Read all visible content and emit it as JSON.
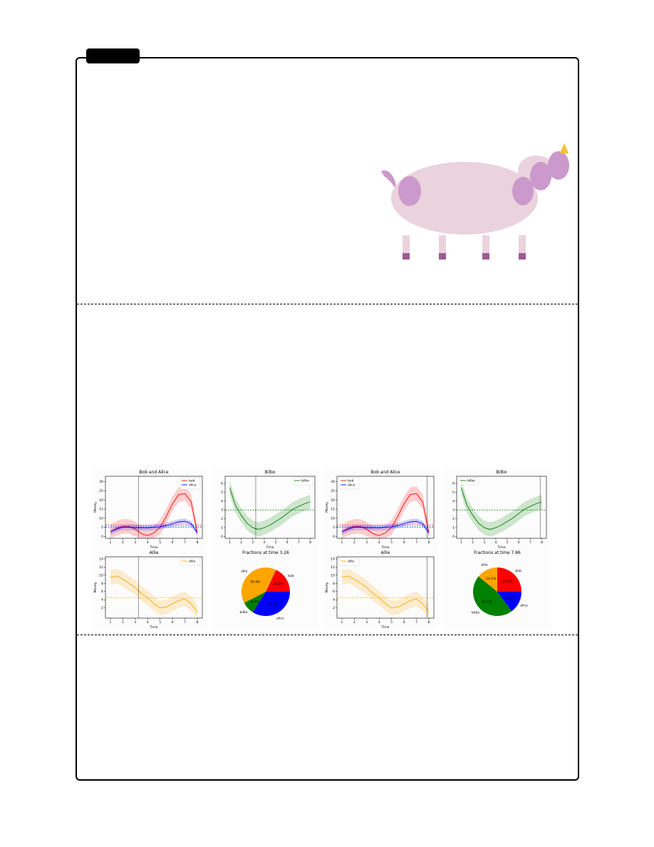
{
  "colors": {
    "bob": "#ff0000",
    "alice": "#0000ff",
    "bilbo": "#008000",
    "allie": "#ffa500",
    "cow_body": "#ead3dd",
    "cow_spots": "#cc99cc",
    "cow_hoof": "#9b5b94",
    "horn": "#f2c230"
  },
  "chart_data": [
    {
      "type": "line",
      "title": "Bob and Alice",
      "xlabel": "Time",
      "ylabel": "Money",
      "xlim": [
        0.6,
        8.4
      ],
      "ylim": [
        -1,
        33
      ],
      "xticks": [
        1,
        2,
        3,
        4,
        5,
        6,
        7,
        8
      ],
      "yticks": [
        0,
        5,
        10,
        15,
        20,
        25,
        30
      ],
      "legend": "top-right",
      "marker_time": 3.26,
      "x": [
        1,
        1.5,
        2,
        2.5,
        3,
        3.5,
        4,
        4.5,
        5,
        5.5,
        6,
        6.5,
        7,
        7.5,
        8
      ],
      "series": [
        {
          "name": "bob",
          "color": "#ff0000",
          "values": [
            2.5,
            4.5,
            5.5,
            5.5,
            4,
            1.5,
            0.5,
            2,
            5,
            11,
            18,
            23,
            23.5,
            19,
            2
          ],
          "band": 4,
          "hline": 6.3
        },
        {
          "name": "alice",
          "color": "#0000ff",
          "values": [
            2.5,
            4,
            5,
            5,
            4.8,
            4.8,
            4.8,
            5,
            5.3,
            6,
            7,
            8,
            8.3,
            7,
            2
          ],
          "band": 1.5,
          "hline": 5.2
        }
      ]
    },
    {
      "type": "line",
      "title": "Bilbo",
      "xlabel": "Time",
      "ylabel": "",
      "xlim": [
        0.6,
        8.4
      ],
      "ylim": [
        -0.2,
        6.8
      ],
      "xticks": [
        1,
        2,
        3,
        4,
        5,
        6,
        7,
        8
      ],
      "yticks": [
        0,
        1,
        2,
        3,
        4,
        5,
        6
      ],
      "legend": "top-right",
      "marker_time": 3.26,
      "x": [
        1,
        1.5,
        2,
        2.5,
        3,
        3.5,
        4,
        4.5,
        5,
        5.5,
        6,
        6.5,
        7,
        7.5,
        8
      ],
      "series": [
        {
          "name": "bilbo",
          "color": "#008000",
          "values": [
            5.5,
            3.5,
            2.4,
            1.5,
            1,
            0.8,
            1,
            1.3,
            1.7,
            2.1,
            2.6,
            3.1,
            3.4,
            3.7,
            3.9
          ],
          "band": 0.8,
          "hline": 3
        }
      ]
    },
    {
      "type": "line",
      "title": "Allie",
      "xlabel": "Time",
      "ylabel": "Money",
      "xlim": [
        0.6,
        8.4
      ],
      "ylim": [
        -0.5,
        14.5
      ],
      "xticks": [
        1,
        2,
        3,
        4,
        5,
        6,
        7,
        8
      ],
      "yticks": [
        2,
        4,
        6,
        8,
        10,
        12,
        14
      ],
      "legend": "top-right",
      "marker_time": 3.26,
      "x": [
        1,
        1.5,
        2,
        2.5,
        3,
        3.5,
        4,
        4.5,
        5,
        5.5,
        6,
        6.5,
        7,
        7.5,
        8
      ],
      "series": [
        {
          "name": "allie",
          "color": "#ffa500",
          "values": [
            9.5,
            9.8,
            9,
            8,
            7,
            5.5,
            4.5,
            3,
            2,
            2.2,
            3,
            3.8,
            4.2,
            3,
            1
          ],
          "band": 1.8,
          "hline": 4.5
        }
      ]
    },
    {
      "type": "pie",
      "title": "Fractions at time 3.26",
      "slices": [
        {
          "name": "bob",
          "value": 18.0,
          "color": "#ff0000",
          "label": "18.0%"
        },
        {
          "name": "allie",
          "value": 39.6,
          "color": "#ffa500",
          "label": "39.6%"
        },
        {
          "name": "bilbo",
          "value": 8.4,
          "color": "#008000",
          "label": "8.4%"
        },
        {
          "name": "alice",
          "value": 34.0,
          "color": "#0000ff",
          "label": "34.0%"
        }
      ]
    },
    {
      "type": "line",
      "title": "Bob and Alice",
      "xlabel": "Time",
      "ylabel": "Money",
      "xlim": [
        0.6,
        8.4
      ],
      "ylim": [
        -1,
        33
      ],
      "xticks": [
        1,
        2,
        3,
        4,
        5,
        6,
        7,
        8
      ],
      "yticks": [
        0,
        5,
        10,
        15,
        20,
        25,
        30
      ],
      "legend": "top-left",
      "marker_time": 7.86,
      "x": [
        1,
        1.5,
        2,
        2.5,
        3,
        3.5,
        4,
        4.5,
        5,
        5.5,
        6,
        6.5,
        7,
        7.5,
        8
      ],
      "series": [
        {
          "name": "bob",
          "color": "#ff0000",
          "values": [
            2.5,
            4.5,
            5.5,
            5.5,
            4,
            1.5,
            0.5,
            2,
            5,
            11,
            18,
            23,
            23.5,
            19,
            2
          ],
          "band": 4,
          "hline": 6.3
        },
        {
          "name": "alice",
          "color": "#0000ff",
          "values": [
            2.5,
            4,
            5,
            5,
            4.8,
            4.8,
            4.8,
            5,
            5.3,
            6,
            7,
            8,
            8.3,
            7,
            2
          ],
          "band": 1.5,
          "hline": 5.2
        }
      ]
    },
    {
      "type": "line",
      "title": "Bilbo",
      "xlabel": "Time",
      "ylabel": "",
      "xlim": [
        0.6,
        8.4
      ],
      "ylim": [
        -0.2,
        6.8
      ],
      "xticks": [
        1,
        2,
        3,
        4,
        5,
        6,
        7,
        8
      ],
      "yticks": [
        0,
        1,
        2,
        3,
        4,
        5,
        6
      ],
      "legend": "top-left",
      "marker_time": 7.86,
      "x": [
        1,
        1.5,
        2,
        2.5,
        3,
        3.5,
        4,
        4.5,
        5,
        5.5,
        6,
        6.5,
        7,
        7.5,
        8
      ],
      "series": [
        {
          "name": "bilbo",
          "color": "#008000",
          "values": [
            5.5,
            3.5,
            2.4,
            1.5,
            1,
            0.8,
            1,
            1.3,
            1.7,
            2.1,
            2.6,
            3.1,
            3.4,
            3.7,
            3.9
          ],
          "band": 0.8,
          "hline": 3
        }
      ]
    },
    {
      "type": "line",
      "title": "Allie",
      "xlabel": "Time",
      "ylabel": "Money",
      "xlim": [
        0.6,
        8.4
      ],
      "ylim": [
        -0.5,
        14.5
      ],
      "xticks": [
        1,
        2,
        3,
        4,
        5,
        6,
        7,
        8
      ],
      "yticks": [
        2,
        4,
        6,
        8,
        10,
        12,
        14
      ],
      "legend": "top-left",
      "marker_time": 7.86,
      "x": [
        1,
        1.5,
        2,
        2.5,
        3,
        3.5,
        4,
        4.5,
        5,
        5.5,
        6,
        6.5,
        7,
        7.5,
        8
      ],
      "series": [
        {
          "name": "allie",
          "color": "#ffa500",
          "values": [
            9.5,
            9.8,
            9,
            8,
            7,
            5.5,
            4.5,
            3,
            2,
            2.2,
            3,
            3.8,
            4.2,
            3,
            1
          ],
          "band": 1.8,
          "hline": 4.5
        }
      ]
    },
    {
      "type": "pie",
      "title": "Fractions at time 7.86",
      "slices": [
        {
          "name": "bob",
          "value": 25.0,
          "color": "#ff0000",
          "label": "25.0%"
        },
        {
          "name": "allie",
          "value": 14.1,
          "color": "#ffa500",
          "label": "14.1%"
        },
        {
          "name": "bilbo",
          "value": 46.1,
          "color": "#008000",
          "label": "46.1%"
        },
        {
          "name": "alice",
          "value": 14.8,
          "color": "#0000ff",
          "label": "14.8%"
        }
      ]
    }
  ]
}
